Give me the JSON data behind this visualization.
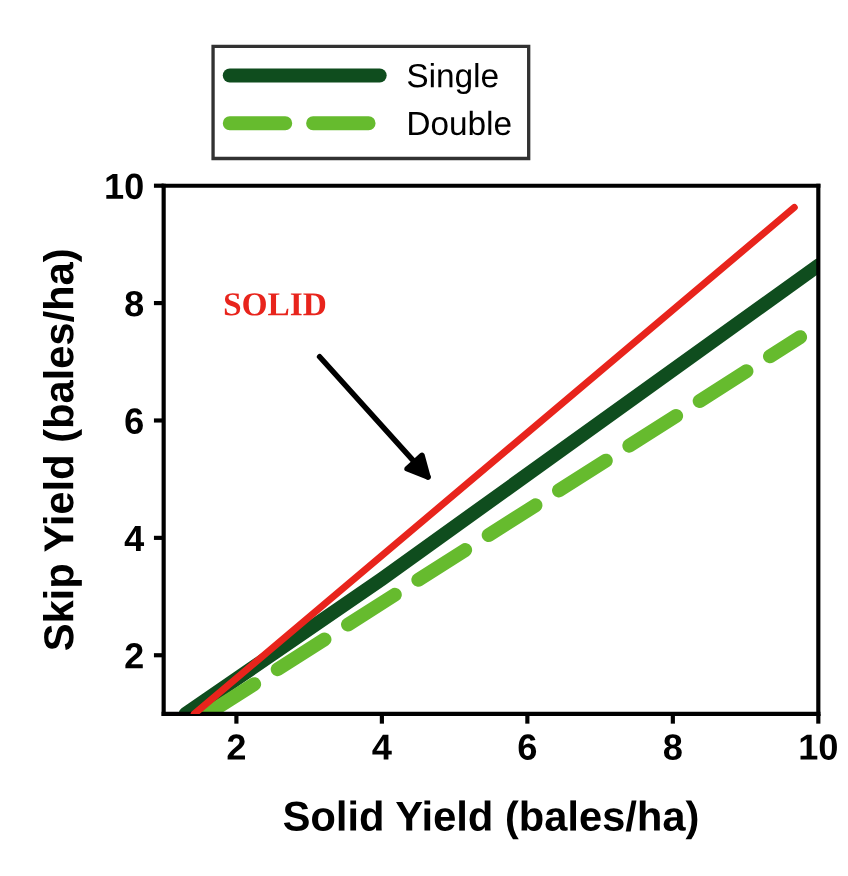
{
  "chart_data": {
    "type": "line",
    "xlabel": "Solid Yield (bales/ha)",
    "ylabel": "Skip Yield (bales/ha)",
    "xlim": [
      1,
      10
    ],
    "ylim": [
      1,
      10
    ],
    "xticks": [
      2,
      4,
      6,
      8,
      10
    ],
    "yticks": [
      2,
      4,
      6,
      8,
      10
    ],
    "grid": false,
    "legend": "top",
    "line_style": "solid",
    "marker": "none",
    "series": [
      {
        "color": "#e8241c",
        "x": [
          1.42,
          9.67
        ],
        "values": [
          1,
          9.63
        ]
      },
      {
        "name": "Single",
        "color": "#0f4d1e",
        "x": [
          1.3,
          4,
          10
        ],
        "values": [
          1,
          3.3,
          8.64
        ]
      },
      {
        "name": "Double",
        "color": "#66bb2e",
        "line_style": "dashed",
        "x": [
          1.6,
          9.75
        ],
        "values": [
          1,
          7.42
        ]
      }
    ],
    "annotations": [
      "SOLID"
    ]
  }
}
